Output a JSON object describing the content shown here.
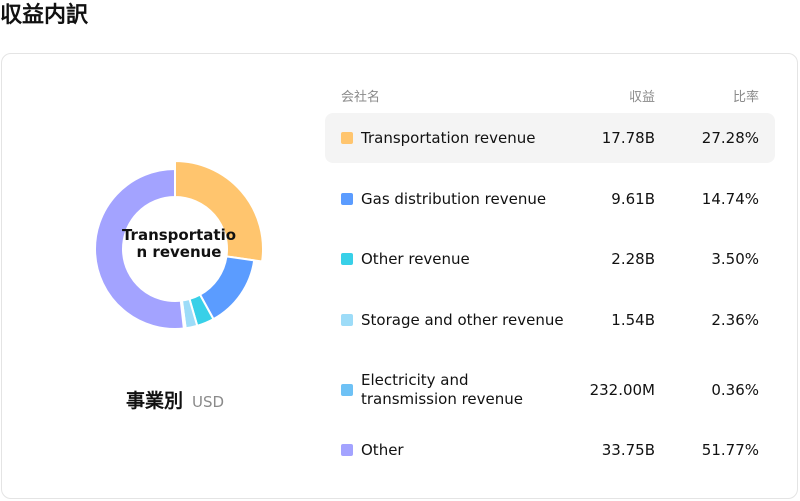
{
  "page_title": "収益内訳",
  "breakdown": {
    "by_label": "事業別",
    "currency": "USD",
    "center_label": "Transportation revenue"
  },
  "table": {
    "headers": {
      "name": "会社名",
      "revenue": "収益",
      "ratio": "比率"
    },
    "rows": [
      {
        "name": "Transportation revenue",
        "revenue": "17.78B",
        "ratio": "27.28%",
        "color": "#FFC56E",
        "highlighted": true
      },
      {
        "name": "Gas distribution revenue",
        "revenue": "9.61B",
        "ratio": "14.74%",
        "color": "#5B9CFF"
      },
      {
        "name": "Other revenue",
        "revenue": "2.28B",
        "ratio": "3.50%",
        "color": "#38D0E8"
      },
      {
        "name": "Storage and other revenue",
        "revenue": "1.54B",
        "ratio": "2.36%",
        "color": "#9DDCF8"
      },
      {
        "name": "Electricity and transmission revenue",
        "revenue": "232.00M",
        "ratio": "0.36%",
        "color": "#6EC1F5"
      },
      {
        "name": "Other",
        "revenue": "33.75B",
        "ratio": "51.77%",
        "color": "#A3A3FF"
      }
    ]
  },
  "chart_data": {
    "type": "pie",
    "categories": [
      "Transportation revenue",
      "Gas distribution revenue",
      "Other revenue",
      "Storage and other revenue",
      "Electricity and transmission revenue",
      "Other"
    ],
    "values": [
      27.28,
      14.74,
      3.5,
      2.36,
      0.36,
      51.77
    ],
    "colors": [
      "#FFC56E",
      "#5B9CFF",
      "#38D0E8",
      "#9DDCF8",
      "#6EC1F5",
      "#A3A3FF"
    ],
    "donut": true,
    "highlighted": "Transportation revenue"
  }
}
